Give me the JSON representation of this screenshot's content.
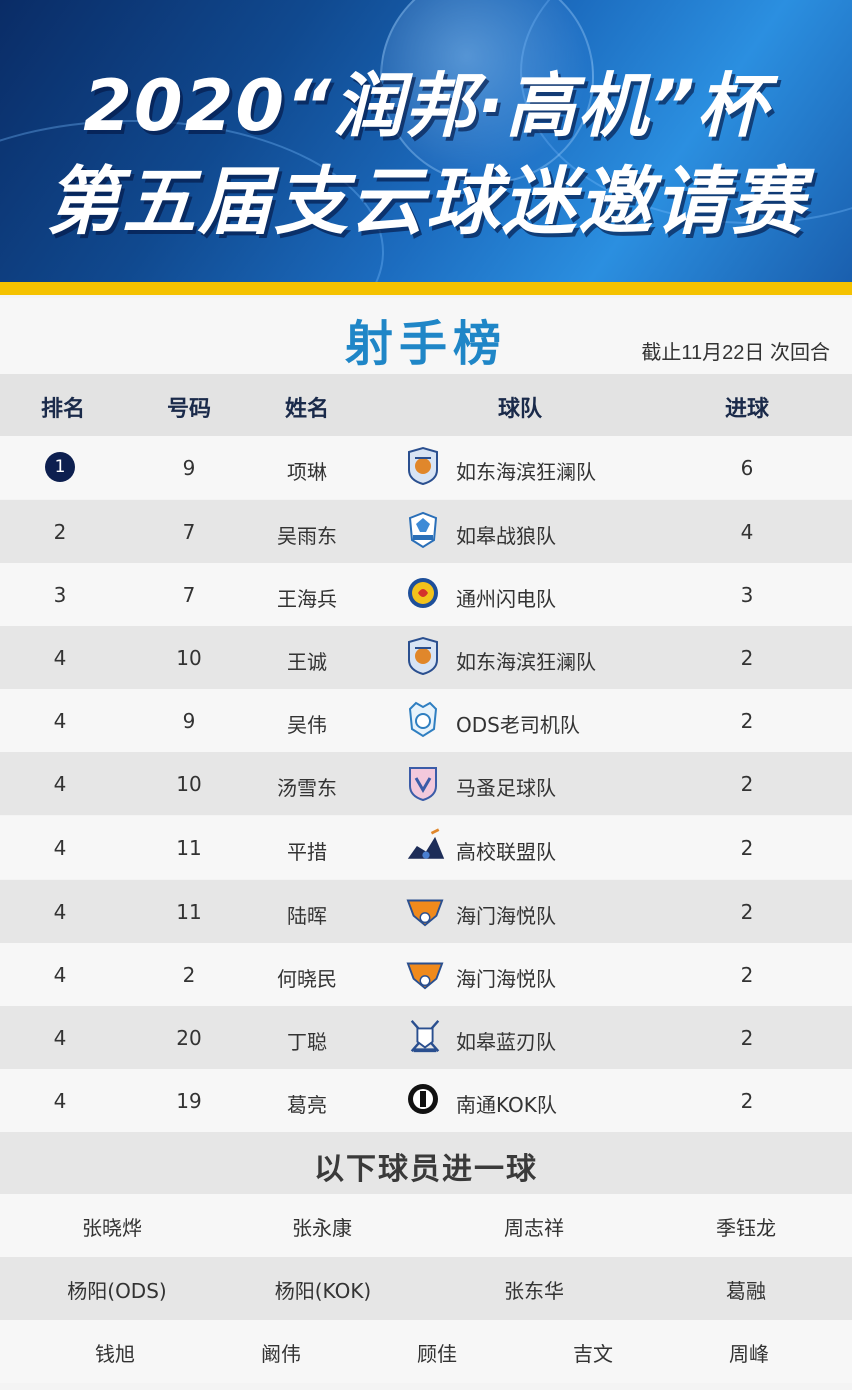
{
  "header": {
    "line1": "2020“润邦·高机”杯",
    "line2": "第五届支云球迷邀请赛"
  },
  "section": {
    "title": "射手榜",
    "date_note": "截止11月22日 次回合"
  },
  "columns": [
    "排名",
    "号码",
    "姓名",
    "球队",
    "进球"
  ],
  "rows": [
    {
      "rank": "1",
      "number": "9",
      "name": "项琳",
      "team": "如东海滨狂澜队",
      "goals": "6",
      "logo": "shield-navy"
    },
    {
      "rank": "2",
      "number": "7",
      "name": "吴雨东",
      "team": "如皋战狼队",
      "goals": "4",
      "logo": "wolf-crest"
    },
    {
      "rank": "3",
      "number": "7",
      "name": "王海兵",
      "team": "通州闪电队",
      "goals": "3",
      "logo": "round-yellow"
    },
    {
      "rank": "4",
      "number": "10",
      "name": "王诚",
      "team": "如东海滨狂澜队",
      "goals": "2",
      "logo": "shield-navy"
    },
    {
      "rank": "4",
      "number": "9",
      "name": "吴伟",
      "team": "ODS老司机队",
      "goals": "2",
      "logo": "ods-crest"
    },
    {
      "rank": "4",
      "number": "10",
      "name": "汤雪东",
      "team": "马蚤足球队",
      "goals": "2",
      "logo": "pink-shield"
    },
    {
      "rank": "4",
      "number": "11",
      "name": "平措",
      "team": "高校联盟队",
      "goals": "2",
      "logo": "league-crest"
    },
    {
      "rank": "4",
      "number": "11",
      "name": "陆晖",
      "team": "海门海悦队",
      "goals": "2",
      "logo": "orange-crest"
    },
    {
      "rank": "4",
      "number": "2",
      "name": "何晓民",
      "team": "海门海悦队",
      "goals": "2",
      "logo": "orange-crest"
    },
    {
      "rank": "4",
      "number": "20",
      "name": "丁聪",
      "team": "如皋蓝刃队",
      "goals": "2",
      "logo": "sword-crest"
    },
    {
      "rank": "4",
      "number": "19",
      "name": "葛亮",
      "team": "南通KOK队",
      "goals": "2",
      "logo": "kok-round"
    }
  ],
  "one_goal": {
    "title": "以下球员进一球",
    "row1": [
      "张晓烨",
      "张永康",
      "周志祥",
      "季钰龙"
    ],
    "row2": [
      "杨阳(ODS)",
      "杨阳(KOK)",
      "张东华",
      "葛融"
    ],
    "row3": [
      "钱旭",
      "阚伟",
      "顾佳",
      "吉文",
      "周峰"
    ]
  },
  "colors": {
    "header_blue": "#1c6cbf",
    "title_blue": "#1f86c7",
    "accent_yellow": "#f5c200",
    "badge_navy": "#0d1f4f"
  }
}
